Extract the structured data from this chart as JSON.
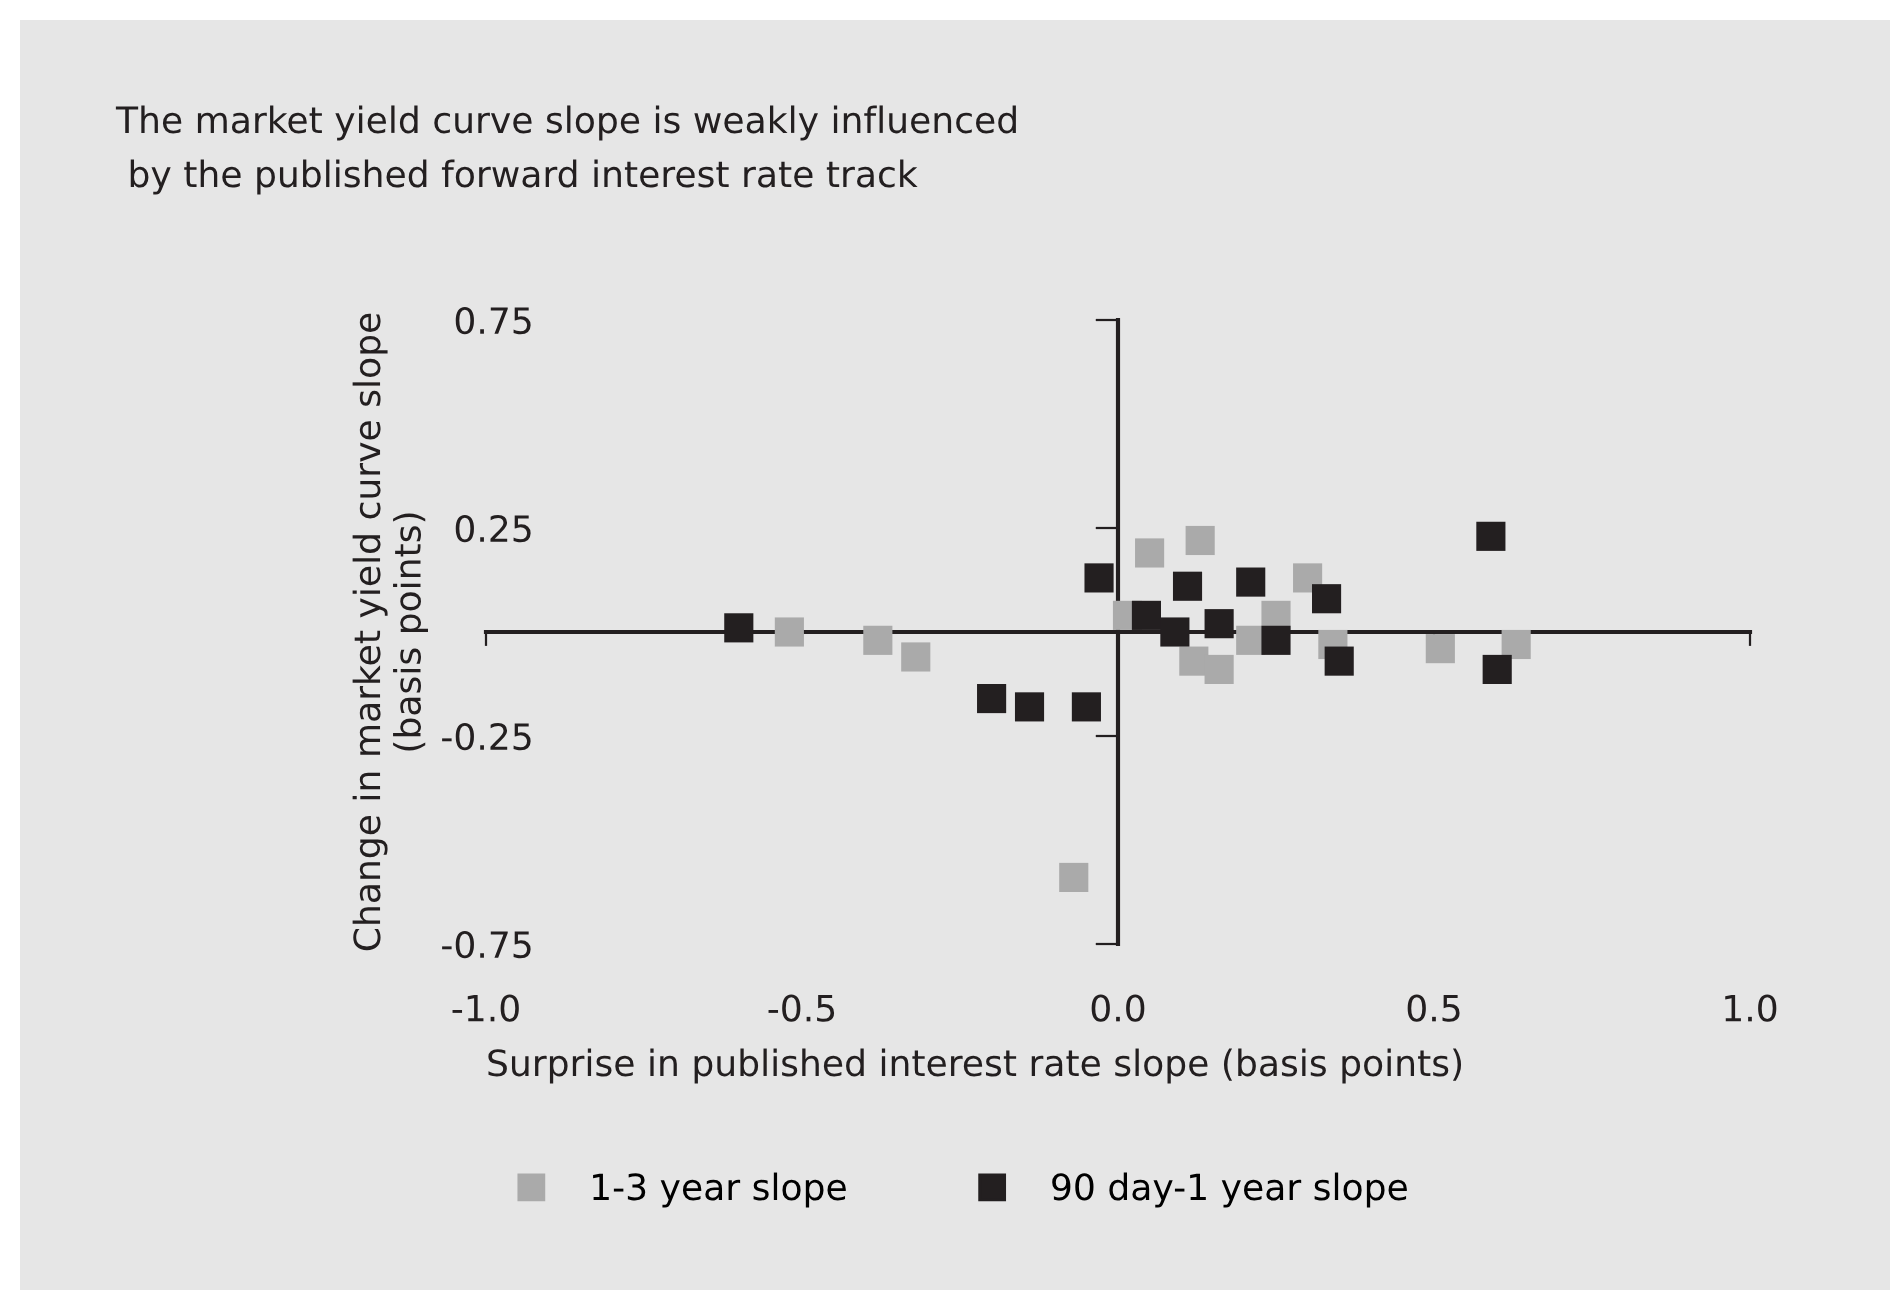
{
  "chart_data": {
    "type": "scatter",
    "title": "The market yield curve slope is weakly influenced\n by the published forward interest rate track",
    "xlabel": "Surprise in published interest rate slope (basis points)",
    "ylabel": "Change in market yield curve slope\n(basis points)",
    "xlim": [
      -1.0,
      1.0
    ],
    "ylim": [
      -0.75,
      0.75
    ],
    "xticks": [
      {
        "value": -1.0,
        "label": "-1.0"
      },
      {
        "value": -0.5,
        "label": "-0.5"
      },
      {
        "value": 0.0,
        "label": "0.0"
      },
      {
        "value": 0.5,
        "label": "0.5"
      },
      {
        "value": 1.0,
        "label": "1.0"
      }
    ],
    "yticks": [
      -0.75,
      -0.25,
      0.25,
      0.75
    ],
    "marker": "square",
    "legend": "bottom",
    "series": [
      {
        "name": "1-3 year slope",
        "color": "#aaaaaa",
        "x": [
          -0.52,
          -0.38,
          -0.32,
          -0.07,
          0.015,
          0.05,
          0.13,
          0.12,
          0.16,
          0.21,
          0.25,
          0.3,
          0.34,
          0.51,
          0.63
        ],
        "values": [
          0.0,
          -0.02,
          -0.06,
          -0.59,
          0.04,
          0.19,
          0.22,
          -0.07,
          -0.09,
          -0.02,
          0.04,
          0.13,
          -0.03,
          -0.04,
          -0.03
        ]
      },
      {
        "name": "90 day-1 year slope",
        "color": "#231f20",
        "x": [
          -0.6,
          -0.2,
          -0.14,
          -0.05,
          -0.03,
          0.045,
          0.09,
          0.11,
          0.16,
          0.21,
          0.25,
          0.33,
          0.35,
          0.59,
          0.6
        ],
        "values": [
          0.01,
          -0.16,
          -0.18,
          -0.18,
          0.13,
          0.04,
          0.0,
          0.11,
          0.02,
          0.12,
          -0.02,
          0.08,
          -0.07,
          0.23,
          -0.09
        ]
      }
    ]
  }
}
